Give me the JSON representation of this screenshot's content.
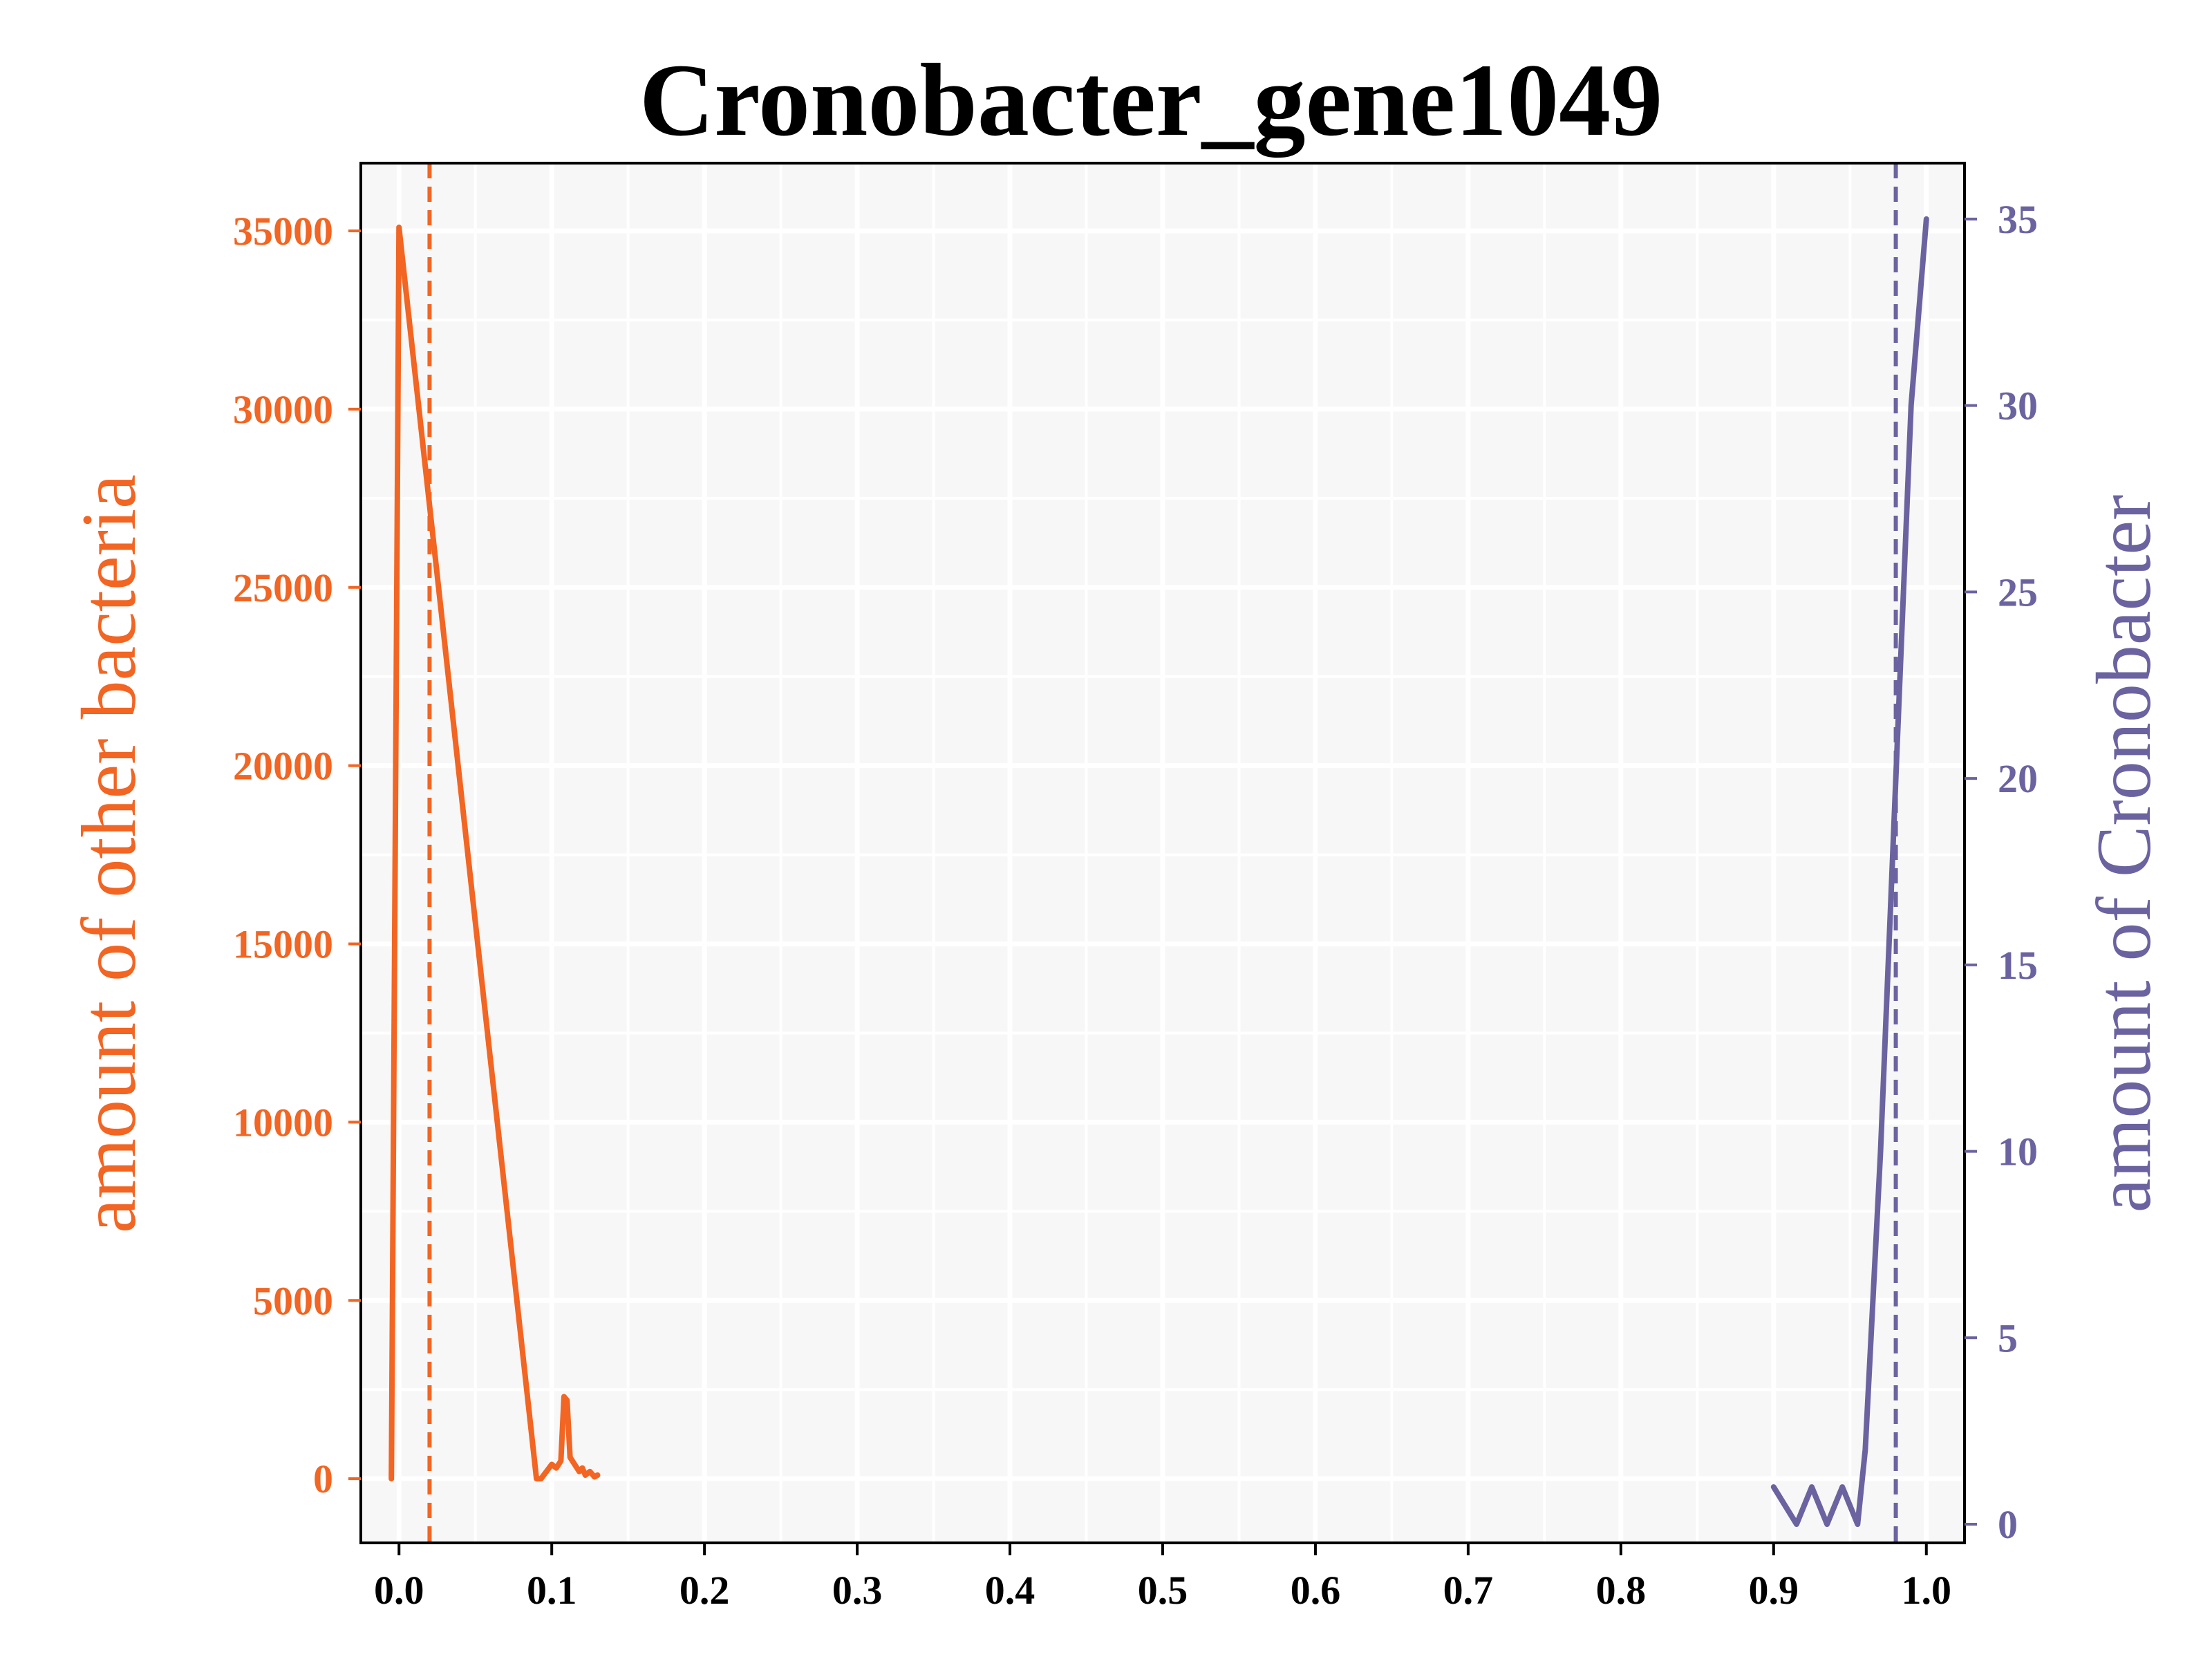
{
  "chart_data": {
    "type": "line",
    "title": "Cronobacter_gene1049",
    "xlabel": "",
    "ylabel_left": "amount of other bacteria",
    "ylabel_right": "amount of Cronobacter",
    "xlim": [
      -0.025,
      1.025
    ],
    "ylim_left": [
      -1800,
      36900
    ],
    "ylim_right": [
      -0.5,
      36.5
    ],
    "x_ticks": [
      "0.0",
      "0.1",
      "0.2",
      "0.3",
      "0.4",
      "0.5",
      "0.6",
      "0.7",
      "0.8",
      "0.9",
      "1.0"
    ],
    "y_ticks_left": [
      "0",
      "5000",
      "10000",
      "15000",
      "20000",
      "25000",
      "30000",
      "35000"
    ],
    "y_ticks_right": [
      "0",
      "5",
      "10",
      "15",
      "20",
      "25",
      "30",
      "35"
    ],
    "grid": true,
    "colors": {
      "other": "#f26522",
      "cronobacter": "#6b63a0",
      "axes_background": "#f7f7f7",
      "grid": "#ffffff"
    },
    "series": [
      {
        "axis": "left",
        "color": "#f26522",
        "x": [
          -0.005,
          0.0,
          0.09,
          0.093,
          0.1,
          0.103,
          0.106,
          0.108,
          0.11,
          0.112,
          0.115,
          0.118,
          0.12,
          0.122,
          0.125,
          0.128,
          0.13
        ],
        "y": [
          0,
          35100,
          0,
          0,
          400,
          300,
          500,
          2300,
          2200,
          600,
          400,
          200,
          300,
          100,
          200,
          50,
          100
        ]
      },
      {
        "axis": "right",
        "color": "#6b63a0",
        "x": [
          0.9,
          0.915,
          0.925,
          0.935,
          0.945,
          0.955,
          0.96,
          0.97,
          0.98,
          0.99,
          1.0
        ],
        "y": [
          1,
          0,
          1,
          0,
          1,
          0,
          2,
          10,
          20,
          30,
          35
        ]
      }
    ],
    "vlines": [
      {
        "x": 0.02,
        "axis": "left",
        "color": "#f26522",
        "style": "dashed"
      },
      {
        "x": 0.98,
        "axis": "right",
        "color": "#6b63a0",
        "style": "dashed"
      }
    ]
  }
}
